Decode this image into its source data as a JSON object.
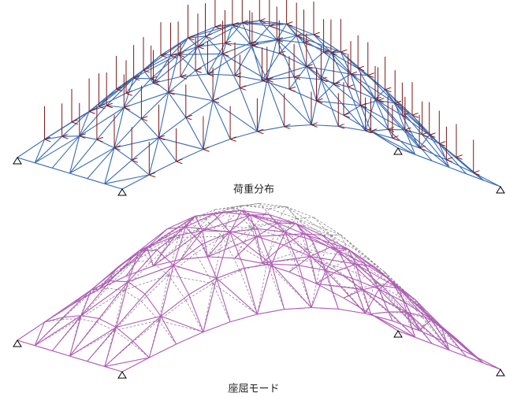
{
  "figures": [
    {
      "caption": "荷重分布"
    },
    {
      "caption": "座屈モード"
    }
  ]
}
